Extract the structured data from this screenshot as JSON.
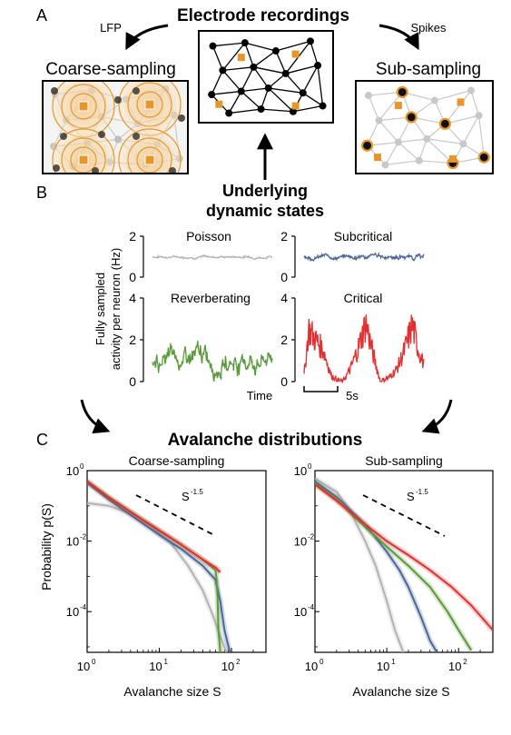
{
  "panel_labels": {
    "a": "A",
    "b": "B",
    "c": "C"
  },
  "section_a": {
    "title": "Electrode recordings",
    "lfp_label": "LFP",
    "spikes_label": "Spikes",
    "coarse_title": "Coarse-sampling",
    "sub_title": "Sub-sampling"
  },
  "section_b": {
    "title_line1": "Underlying",
    "title_line2": "dynamic states",
    "ylabel_line1": "Fully sampled",
    "ylabel_line2": "activity per neuron (Hz)",
    "time_label": "Time",
    "scalebar_label": "5s"
  },
  "section_c": {
    "title": "Avalanche distributions",
    "ylabel": "Probability p(S)",
    "xlabel": "Avalanche size S",
    "slope_label": "S",
    "slope_exp": "-1.5"
  },
  "colors": {
    "poisson": "#b3b3b3",
    "subcritical": "#4a6797",
    "reverberating": "#5a9a3a",
    "critical": "#e03030",
    "electrode": "#e8962a",
    "network_gray": "#c8c8c8"
  },
  "chart_data": [
    {
      "type": "line",
      "title": "Poisson",
      "color": "#b3b3b3",
      "ylim": [
        0,
        2
      ],
      "yticks": [
        "0",
        "2"
      ],
      "mean": 1.0,
      "fluctuation": 0.06
    },
    {
      "type": "line",
      "title": "Subcritical",
      "color": "#4a6797",
      "ylim": [
        0,
        2
      ],
      "yticks": [
        "0",
        "2"
      ],
      "mean": 1.0,
      "fluctuation": 0.12
    },
    {
      "type": "line",
      "title": "Reverberating",
      "color": "#5a9a3a",
      "ylim": [
        0,
        4
      ],
      "yticks": [
        "0",
        "2",
        "4"
      ],
      "mean": 1.0,
      "fluctuation": 0.5
    },
    {
      "type": "line",
      "title": "Critical",
      "color": "#e03030",
      "ylim": [
        0,
        4
      ],
      "yticks": [
        "0",
        "2",
        "4"
      ],
      "bursts": [
        {
          "x": [
            0,
            0.6,
            1.5,
            2.5,
            3.5,
            4.2,
            5.0
          ],
          "y": [
            0.3,
            2.5,
            2.0,
            1.5,
            0.3,
            0.1,
            0.0
          ]
        },
        {
          "x": [
            5.0,
            6.0,
            7.0,
            8.0,
            9.0,
            9.8
          ],
          "y": [
            0.0,
            0.6,
            1.6,
            2.8,
            1.2,
            0.1
          ]
        },
        {
          "x": [
            9.8,
            11.0,
            12.0,
            13.0,
            14.0,
            14.8,
            15.5
          ],
          "y": [
            0.0,
            0.2,
            0.6,
            1.5,
            2.7,
            1.5,
            0.8
          ]
        }
      ]
    },
    {
      "type": "line",
      "title": "Coarse-sampling",
      "xscale": "log",
      "yscale": "log",
      "xlim": [
        1,
        300
      ],
      "ylim": [
        7e-06,
        1
      ],
      "xticks": [
        "10^0",
        "10^1",
        "10^2"
      ],
      "yticks": [
        "10^0",
        "10^-2",
        "10^-4"
      ],
      "reference_slope": -1.5,
      "series": [
        {
          "key": "poisson",
          "x": [
            1,
            2,
            4,
            8,
            15,
            25,
            40,
            55,
            70,
            85
          ],
          "y": [
            0.12,
            0.1,
            0.06,
            0.025,
            0.008,
            0.002,
            0.0004,
            8e-05,
            2e-05,
            7e-06
          ]
        },
        {
          "key": "subcritical",
          "x": [
            1,
            2,
            5,
            10,
            20,
            40,
            60,
            70,
            80,
            95
          ],
          "y": [
            0.45,
            0.15,
            0.04,
            0.015,
            0.006,
            0.002,
            0.0008,
            0.0002,
            3e-05,
            7e-06
          ]
        },
        {
          "key": "reverberating",
          "x": [
            1,
            2,
            5,
            10,
            20,
            40,
            60,
            62,
            64,
            66,
            70
          ],
          "y": [
            0.5,
            0.18,
            0.05,
            0.02,
            0.008,
            0.003,
            0.0015,
            0.0009,
            0.0003,
            3e-05,
            7e-06
          ]
        },
        {
          "key": "critical",
          "x": [
            1,
            2,
            5,
            10,
            20,
            40,
            60,
            70
          ],
          "y": [
            0.5,
            0.17,
            0.05,
            0.02,
            0.008,
            0.003,
            0.0018,
            0.0013
          ]
        }
      ]
    },
    {
      "type": "line",
      "title": "Sub-sampling",
      "xscale": "log",
      "yscale": "log",
      "xlim": [
        1,
        300
      ],
      "ylim": [
        7e-06,
        1
      ],
      "xticks": [
        "10^0",
        "10^1",
        "10^2"
      ],
      "yticks": [
        "10^0",
        "10^-2",
        "10^-4"
      ],
      "reference_slope": -1.5,
      "series": [
        {
          "key": "poisson",
          "x": [
            1,
            2,
            3,
            5,
            7,
            10,
            13,
            17
          ],
          "y": [
            0.6,
            0.25,
            0.08,
            0.01,
            0.002,
            0.0002,
            3e-05,
            7e-06
          ]
        },
        {
          "key": "subcritical",
          "x": [
            1,
            2,
            5,
            10,
            15,
            20,
            30,
            40,
            50
          ],
          "y": [
            0.5,
            0.18,
            0.03,
            0.005,
            0.0015,
            0.0005,
            7e-05,
            1.5e-05,
            7e-06
          ]
        },
        {
          "key": "reverberating",
          "x": [
            1,
            2,
            5,
            10,
            20,
            40,
            70,
            100,
            150
          ],
          "y": [
            0.45,
            0.15,
            0.025,
            0.007,
            0.002,
            0.0005,
            0.0001,
            3e-05,
            8e-06
          ]
        },
        {
          "key": "critical",
          "x": [
            1,
            2,
            5,
            10,
            20,
            40,
            80,
            150,
            300
          ],
          "y": [
            0.4,
            0.14,
            0.03,
            0.01,
            0.004,
            0.0015,
            0.0005,
            0.00015,
            3e-05
          ]
        }
      ]
    }
  ]
}
